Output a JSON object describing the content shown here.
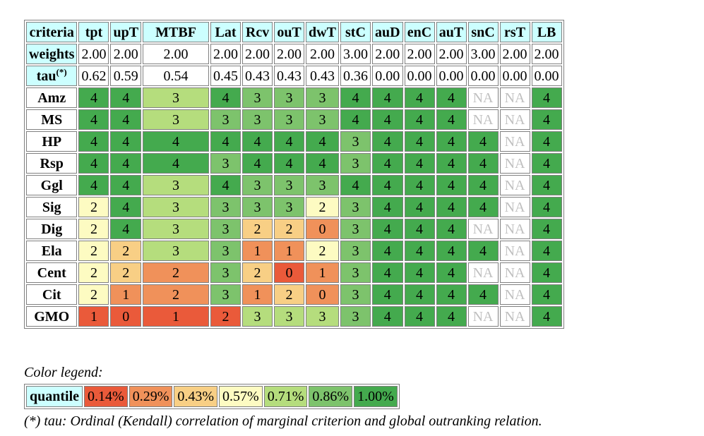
{
  "table": {
    "header_label": "criteria",
    "criteria": [
      "tpt",
      "upT",
      "MTBF",
      "Lat",
      "Rcv",
      "ouT",
      "dwT",
      "stC",
      "auD",
      "enC",
      "auT",
      "snC",
      "rsT",
      "LB"
    ],
    "weights_label": "weights",
    "weights": [
      "2.00",
      "2.00",
      "2.00",
      "2.00",
      "2.00",
      "2.00",
      "2.00",
      "3.00",
      "2.00",
      "2.00",
      "2.00",
      "3.00",
      "2.00",
      "2.00"
    ],
    "tau_label": "tau",
    "tau_sup": "(*)",
    "tau": [
      "0.62",
      "0.59",
      "0.54",
      "0.45",
      "0.43",
      "0.43",
      "0.43",
      "0.36",
      "0.00",
      "0.00",
      "0.00",
      "0.00",
      "0.00",
      "0.00"
    ],
    "rows": [
      {
        "name": "Amz",
        "values": [
          "4",
          "4",
          "3",
          "4",
          "3",
          "3",
          "3",
          "4",
          "4",
          "4",
          "4",
          "NA",
          "NA",
          "4"
        ],
        "quantiles": [
          6,
          6,
          4,
          6,
          5,
          5,
          5,
          6,
          6,
          6,
          6,
          -1,
          -1,
          6
        ]
      },
      {
        "name": "MS",
        "values": [
          "4",
          "4",
          "3",
          "3",
          "3",
          "3",
          "3",
          "4",
          "4",
          "4",
          "4",
          "NA",
          "NA",
          "4"
        ],
        "quantiles": [
          6,
          6,
          4,
          5,
          5,
          5,
          5,
          6,
          6,
          6,
          6,
          -1,
          -1,
          6
        ]
      },
      {
        "name": "HP",
        "values": [
          "4",
          "4",
          "4",
          "4",
          "4",
          "4",
          "4",
          "3",
          "4",
          "4",
          "4",
          "4",
          "NA",
          "4"
        ],
        "quantiles": [
          6,
          6,
          6,
          6,
          6,
          6,
          6,
          5,
          6,
          6,
          6,
          6,
          -1,
          6
        ]
      },
      {
        "name": "Rsp",
        "values": [
          "4",
          "4",
          "4",
          "3",
          "4",
          "4",
          "4",
          "3",
          "4",
          "4",
          "4",
          "4",
          "NA",
          "4"
        ],
        "quantiles": [
          6,
          6,
          6,
          5,
          6,
          6,
          6,
          5,
          6,
          6,
          6,
          6,
          -1,
          6
        ]
      },
      {
        "name": "Ggl",
        "values": [
          "4",
          "4",
          "3",
          "4",
          "3",
          "3",
          "3",
          "4",
          "4",
          "4",
          "4",
          "4",
          "NA",
          "4"
        ],
        "quantiles": [
          6,
          6,
          4,
          6,
          5,
          5,
          5,
          6,
          6,
          6,
          6,
          6,
          -1,
          6
        ]
      },
      {
        "name": "Sig",
        "values": [
          "2",
          "4",
          "3",
          "3",
          "3",
          "3",
          "2",
          "3",
          "4",
          "4",
          "4",
          "4",
          "NA",
          "4"
        ],
        "quantiles": [
          3,
          6,
          4,
          5,
          5,
          5,
          3,
          5,
          6,
          6,
          6,
          6,
          -1,
          6
        ]
      },
      {
        "name": "Dig",
        "values": [
          "2",
          "4",
          "3",
          "3",
          "2",
          "2",
          "0",
          "3",
          "4",
          "4",
          "4",
          "NA",
          "NA",
          "4"
        ],
        "quantiles": [
          3,
          6,
          4,
          5,
          2,
          2,
          1,
          5,
          6,
          6,
          6,
          -1,
          -1,
          6
        ]
      },
      {
        "name": "Ela",
        "values": [
          "2",
          "2",
          "3",
          "3",
          "1",
          "1",
          "2",
          "3",
          "4",
          "4",
          "4",
          "4",
          "NA",
          "4"
        ],
        "quantiles": [
          3,
          2,
          4,
          5,
          1,
          1,
          3,
          5,
          6,
          6,
          6,
          6,
          -1,
          6
        ]
      },
      {
        "name": "Cent",
        "values": [
          "2",
          "2",
          "2",
          "3",
          "2",
          "0",
          "1",
          "3",
          "4",
          "4",
          "4",
          "NA",
          "NA",
          "4"
        ],
        "quantiles": [
          3,
          2,
          1,
          5,
          2,
          0,
          1,
          5,
          6,
          6,
          6,
          -1,
          -1,
          6
        ]
      },
      {
        "name": "Cit",
        "values": [
          "2",
          "1",
          "2",
          "3",
          "1",
          "2",
          "0",
          "3",
          "4",
          "4",
          "4",
          "4",
          "NA",
          "4"
        ],
        "quantiles": [
          3,
          1,
          1,
          5,
          1,
          2,
          1,
          5,
          6,
          6,
          6,
          6,
          -1,
          6
        ]
      },
      {
        "name": "GMO",
        "values": [
          "1",
          "0",
          "1",
          "2",
          "3",
          "3",
          "3",
          "3",
          "4",
          "4",
          "4",
          "NA",
          "NA",
          "4"
        ],
        "quantiles": [
          0,
          0,
          0,
          0,
          4,
          4,
          4,
          5,
          6,
          6,
          6,
          -1,
          -1,
          6
        ]
      }
    ]
  },
  "legend": {
    "title": "Color legend:",
    "label": "quantile",
    "items": [
      "0.14%",
      "0.29%",
      "0.43%",
      "0.57%",
      "0.71%",
      "0.86%",
      "1.00%"
    ],
    "colors": [
      "#ea5a3a",
      "#f0915a",
      "#f8cf85",
      "#fdfbc2",
      "#b5dd7d",
      "#7dc36c",
      "#44aa4e"
    ]
  },
  "footnote": "(*) tau: Ordinal (Kendall) correlation of marginal criterion and global outranking relation."
}
